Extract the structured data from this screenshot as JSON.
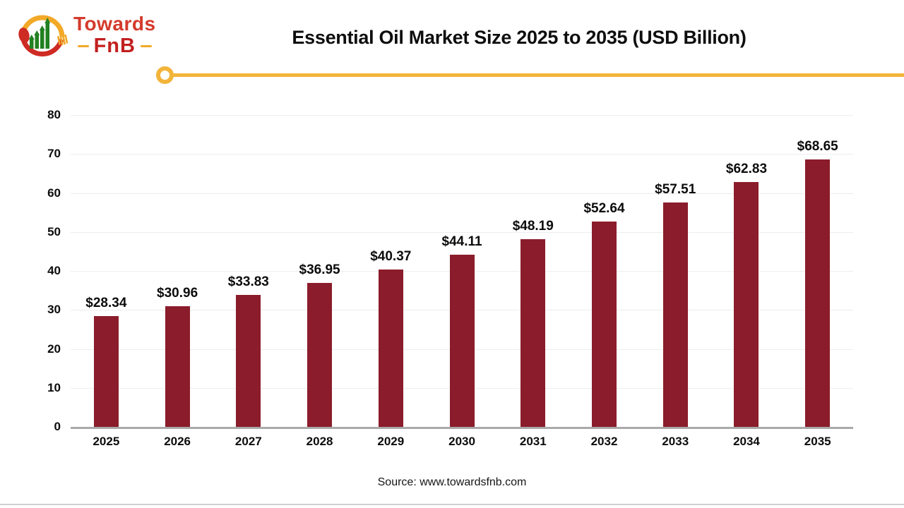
{
  "logo": {
    "brand_line1": "Towards",
    "brand_line2": "FnB"
  },
  "header": {
    "title": "Essential Oil Market Size 2025 to 2035 (USD Billion)"
  },
  "chart_data": {
    "type": "bar",
    "title": "Essential Oil Market Size 2025 to 2035 (USD Billion)",
    "categories": [
      "2025",
      "2026",
      "2027",
      "2028",
      "2029",
      "2030",
      "2031",
      "2032",
      "2033",
      "2034",
      "2035"
    ],
    "values": [
      28.34,
      30.96,
      33.83,
      36.95,
      40.37,
      44.11,
      48.19,
      52.64,
      57.51,
      62.83,
      68.65
    ],
    "value_prefix": "$",
    "ylim": [
      0,
      80
    ],
    "yticks": [
      0,
      10,
      20,
      30,
      40,
      50,
      60,
      70,
      80
    ],
    "bar_color": "#8B1C2B",
    "grid": true,
    "legend_position": "none",
    "xlabel": "",
    "ylabel": ""
  },
  "footer": {
    "source": "Source: www.towardsfnb.com"
  },
  "colors": {
    "accent_yellow": "#F3B43A",
    "bar_maroon": "#8B1C2B",
    "logo_red": "#D43A2B",
    "logo_dark_red": "#C2201F",
    "logo_green": "#218021",
    "axis_gray": "#A9A9A9"
  }
}
